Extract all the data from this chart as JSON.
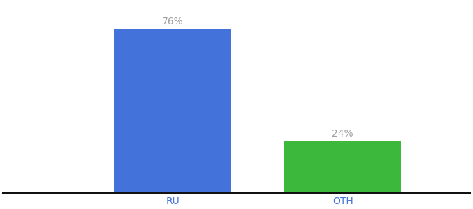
{
  "categories": [
    "RU",
    "OTH"
  ],
  "values": [
    76,
    24
  ],
  "bar_colors": [
    "#4472db",
    "#3cb83c"
  ],
  "label_color": "#a0a0a0",
  "tick_color": "#4472db",
  "background_color": "#ffffff",
  "ylim": [
    0,
    88
  ],
  "bar_width": 0.55,
  "label_fontsize": 10,
  "tick_fontsize": 10,
  "value_labels": [
    "76%",
    "24%"
  ],
  "xlim": [
    -0.5,
    1.7
  ]
}
